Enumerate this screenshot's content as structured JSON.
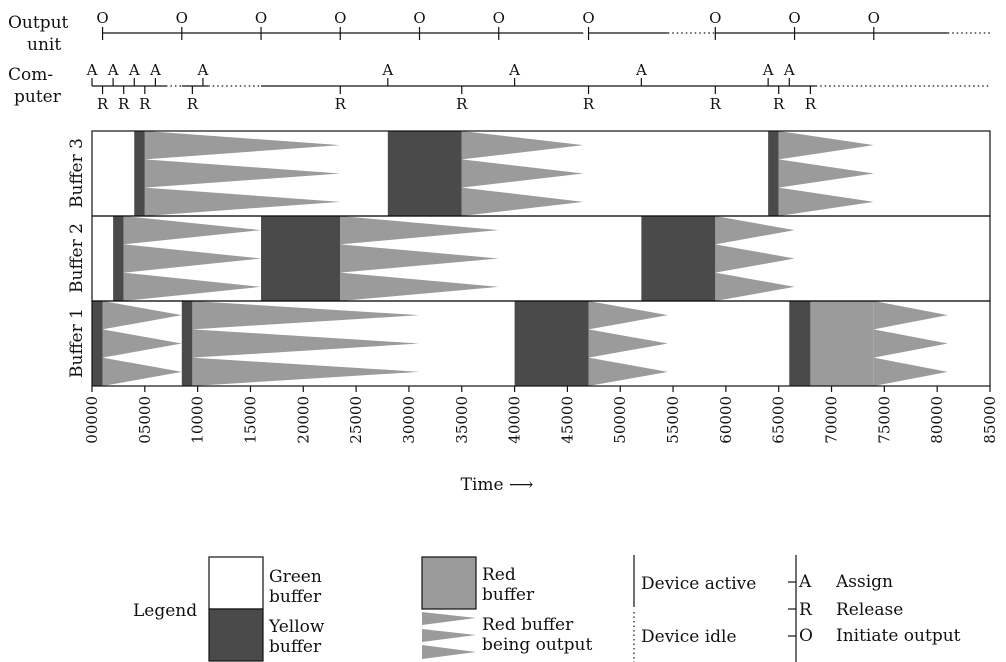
{
  "labels": {
    "output_unit": [
      "Output",
      "unit"
    ],
    "computer": [
      "Com-",
      "puter"
    ],
    "buffers": [
      "Buffer 3",
      "Buffer 2",
      "Buffer 1"
    ],
    "xlabel": "Time ⟶"
  },
  "axis": {
    "min": 0,
    "max": 85000,
    "ticks": [
      "00000",
      "05000",
      "10000",
      "15000",
      "20000",
      "25000",
      "30000",
      "35000",
      "40000",
      "45000",
      "50000",
      "55000",
      "60000",
      "65000",
      "70000",
      "75000",
      "80000",
      "85000"
    ]
  },
  "output_timeline": {
    "active_segments": [
      [
        1000,
        46500
      ],
      [
        47000,
        54500
      ],
      [
        59000,
        81000
      ]
    ],
    "idle_segments": [
      [
        54500,
        59000
      ],
      [
        81000,
        85000
      ]
    ],
    "events": [
      {
        "t": 1000,
        "label": "O"
      },
      {
        "t": 8500,
        "label": "O"
      },
      {
        "t": 16000,
        "label": "O"
      },
      {
        "t": 23500,
        "label": "O"
      },
      {
        "t": 31000,
        "label": "O"
      },
      {
        "t": 38500,
        "label": "O"
      },
      {
        "t": 47000,
        "label": "O"
      },
      {
        "t": 59000,
        "label": "O"
      },
      {
        "t": 66500,
        "label": "O"
      },
      {
        "t": 74000,
        "label": "O"
      }
    ]
  },
  "computer_timeline": {
    "active_segments": [
      [
        0,
        7000
      ],
      [
        8500,
        11000
      ],
      [
        16000,
        68500
      ]
    ],
    "idle_segments": [
      [
        7000,
        8500
      ],
      [
        11000,
        16000
      ],
      [
        68500,
        85000
      ]
    ],
    "assign_events": [
      {
        "t": 0,
        "label": "A"
      },
      {
        "t": 2000,
        "label": "A"
      },
      {
        "t": 4000,
        "label": "A"
      },
      {
        "t": 6000,
        "label": "A"
      },
      {
        "t": 10500,
        "label": "A"
      },
      {
        "t": 28000,
        "label": "A"
      },
      {
        "t": 40000,
        "label": "A"
      },
      {
        "t": 52000,
        "label": "A"
      },
      {
        "t": 64000,
        "label": "A"
      },
      {
        "t": 66000,
        "label": "A"
      }
    ],
    "release_events": [
      {
        "t": 1000,
        "label": "R"
      },
      {
        "t": 3000,
        "label": "R"
      },
      {
        "t": 5000,
        "label": "R"
      },
      {
        "t": 9500,
        "label": "R"
      },
      {
        "t": 23500,
        "label": "R"
      },
      {
        "t": 35000,
        "label": "R"
      },
      {
        "t": 47000,
        "label": "R"
      },
      {
        "t": 59000,
        "label": "R"
      },
      {
        "t": 65000,
        "label": "R"
      },
      {
        "t": 68000,
        "label": "R"
      }
    ]
  },
  "buffers": [
    {
      "name": "Buffer 3",
      "yellow": [
        [
          4000,
          5000
        ],
        [
          28000,
          35000
        ],
        [
          64000,
          65000
        ]
      ],
      "red": [],
      "red_output": [
        [
          5000,
          23500
        ],
        [
          35000,
          46500
        ],
        [
          65000,
          74000
        ]
      ]
    },
    {
      "name": "Buffer 2",
      "yellow": [
        [
          2000,
          3000
        ],
        [
          16000,
          23500
        ],
        [
          52000,
          59000
        ]
      ],
      "red": [],
      "red_output": [
        [
          3000,
          16000
        ],
        [
          23500,
          38500
        ],
        [
          59000,
          66500
        ]
      ]
    },
    {
      "name": "Buffer 1",
      "yellow": [
        [
          0,
          1000
        ],
        [
          8500,
          9500
        ],
        [
          40000,
          47000
        ],
        [
          66000,
          68000
        ]
      ],
      "red": [
        [
          68000,
          74000
        ]
      ],
      "red_output": [
        [
          1000,
          8500
        ],
        [
          9500,
          31000
        ],
        [
          47000,
          54500
        ],
        [
          74000,
          81000
        ]
      ]
    }
  ],
  "legend": {
    "title": "Legend",
    "green": [
      "Green",
      "buffer"
    ],
    "yellow": [
      "Yellow",
      "buffer"
    ],
    "red": [
      "Red",
      "buffer"
    ],
    "red_output": [
      "Red buffer",
      "being output"
    ],
    "device_active": "Device active",
    "device_idle": "Device idle",
    "assign": {
      "symbol": "A",
      "text": "Assign"
    },
    "release": {
      "symbol": "R",
      "text": "Release"
    },
    "output": {
      "symbol": "O",
      "text": "Initiate output"
    }
  },
  "colors": {
    "yellow": "#4a4a4a",
    "red": "#9b9b9b",
    "green": "#ffffff",
    "line": "#111111"
  }
}
